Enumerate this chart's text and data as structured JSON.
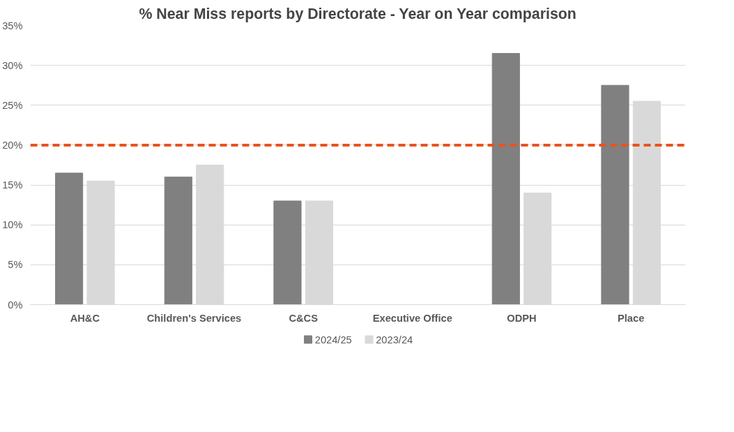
{
  "chart_data": {
    "type": "bar",
    "title": "% Near Miss reports by Directorate - Year on Year comparison",
    "categories": [
      "AH&C",
      "Children's Services",
      "C&CS",
      "Executive Office",
      "ODPH",
      "Place"
    ],
    "series": [
      {
        "name": "2024/25",
        "color": "#808080",
        "values": [
          16.5,
          16,
          13,
          0,
          31.5,
          27.5
        ]
      },
      {
        "name": "2023/24",
        "color": "#d9d9d9",
        "values": [
          15.5,
          17.5,
          13,
          0,
          14,
          25.5
        ]
      }
    ],
    "ylim": [
      0,
      35
    ],
    "yticks": [
      {
        "value": 0,
        "label": "0%"
      },
      {
        "value": 5,
        "label": "5%"
      },
      {
        "value": 10,
        "label": "10%"
      },
      {
        "value": 15,
        "label": "15%"
      },
      {
        "value": 20,
        "label": "20%"
      },
      {
        "value": 25,
        "label": "25%"
      },
      {
        "value": 30,
        "label": "30%"
      },
      {
        "value": 35,
        "label": "35%"
      }
    ],
    "ref_lines": [
      {
        "axis": "y",
        "value": 20,
        "label": null,
        "color": "#e8531e",
        "line_style": "dashed"
      }
    ],
    "grid": "y",
    "legend": "bottom"
  }
}
